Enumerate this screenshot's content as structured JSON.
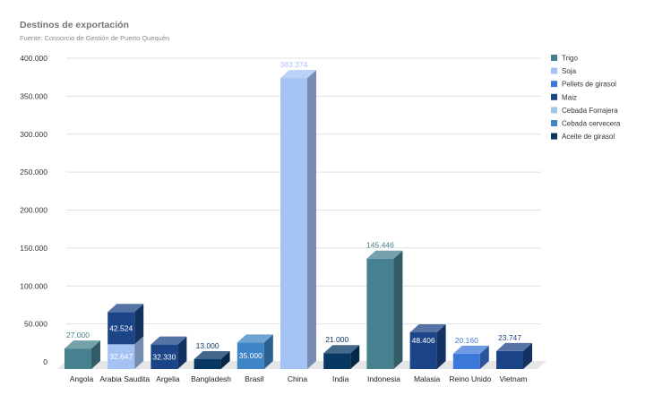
{
  "chart_data": {
    "type": "bar",
    "stacked": true,
    "style": "3d",
    "title": "Destinos de exportación",
    "subtitle": "Fuente: Consorcio de Gestión de Puerto Quequén",
    "categories": [
      "Angola",
      "Arabia Saudita",
      "Argelia",
      "Bangladesh",
      "Brasil",
      "China",
      "India",
      "Indonesia",
      "Malasia",
      "Reino Unido",
      "Vietnam"
    ],
    "ylim": [
      0,
      400000
    ],
    "yticks": [
      0,
      50000,
      100000,
      150000,
      200000,
      250000,
      300000,
      350000,
      400000
    ],
    "ytick_labels": [
      "0",
      "50.000",
      "100.000",
      "150.000",
      "200.000",
      "250.000",
      "300.000",
      "350.000",
      "400.000"
    ],
    "grid": true,
    "legend_position": "right",
    "series": [
      {
        "name": "Trigo",
        "color": "#45818e",
        "values": [
          27000,
          null,
          null,
          null,
          null,
          null,
          null,
          145446,
          null,
          null,
          null
        ],
        "labels": [
          "27.000",
          null,
          null,
          null,
          null,
          null,
          null,
          "145.446",
          null,
          null,
          null
        ]
      },
      {
        "name": "Soja",
        "color": "#a4c2f4",
        "values": [
          null,
          32647,
          null,
          null,
          null,
          383374,
          null,
          null,
          null,
          null,
          null
        ],
        "labels": [
          null,
          "32.647",
          null,
          null,
          null,
          "383.374",
          null,
          null,
          null,
          null,
          null
        ]
      },
      {
        "name": "Pellets de girasol",
        "color": "#3c78d8",
        "values": [
          null,
          null,
          null,
          null,
          null,
          null,
          null,
          null,
          null,
          20160,
          null
        ],
        "labels": [
          null,
          null,
          null,
          null,
          null,
          null,
          null,
          null,
          null,
          "20.160",
          null
        ]
      },
      {
        "name": "Maiz",
        "color": "#1c4587",
        "values": [
          null,
          42524,
          32330,
          null,
          null,
          null,
          null,
          null,
          48406,
          null,
          23747
        ],
        "labels": [
          null,
          "42.524",
          "32.330",
          null,
          null,
          null,
          null,
          null,
          "48.406",
          null,
          "23.747"
        ]
      },
      {
        "name": "Cebada Forrajera",
        "color": "#9fc5e8",
        "values": [
          null,
          null,
          null,
          null,
          null,
          null,
          null,
          null,
          null,
          null,
          null
        ],
        "labels": []
      },
      {
        "name": "Cebada cervecera",
        "color": "#3d85c6",
        "values": [
          null,
          null,
          null,
          null,
          35000,
          null,
          null,
          null,
          null,
          null,
          null
        ],
        "labels": [
          null,
          null,
          null,
          null,
          "35.000",
          null,
          null,
          null,
          null,
          null,
          null
        ]
      },
      {
        "name": "Aceite de girasol",
        "color": "#073763",
        "values": [
          null,
          null,
          null,
          13000,
          null,
          null,
          21000,
          null,
          null,
          null,
          null
        ],
        "labels": [
          null,
          null,
          null,
          "13.000",
          null,
          null,
          "21.000",
          null,
          null,
          null,
          null
        ]
      }
    ]
  }
}
